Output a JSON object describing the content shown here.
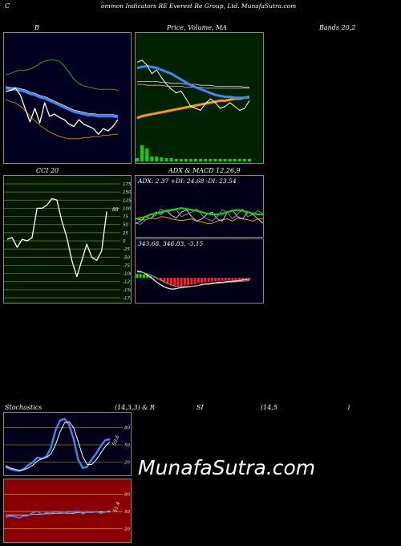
{
  "header": {
    "c": "C",
    "title": "ommon  Indicators RE Everest Re  Group,  Ltd. MunafaSutra.com"
  },
  "labels": {
    "b": "B",
    "price": "Price,  Volume,  MA",
    "bands": "Bands 20,2",
    "cci": "CCI 20",
    "adx": "ADX  & MACD 12,26,9",
    "adx_values": "ADX: 2.37  +DI: 24.68  -DI: 23.54",
    "macd_values": "343.68,  346.83,  -3.15",
    "cci_current": "88",
    "stoch_a": "Stochastics",
    "stoch_b": "(14,3,3) & R",
    "stoch_c": "SI",
    "stoch_d": "(14,5",
    "stoch_e": ")",
    "stoch_current": "59.6",
    "rsi_current": "51.4"
  },
  "watermark": "MunafaSutra.com",
  "colors": {
    "bands_bg": "#000020",
    "price_bg": "#002200",
    "cci_bg": "#001900",
    "adx_bg": "#000018",
    "stoch_bg": "#000018",
    "rsi_bg": "#8b0000"
  },
  "chart_data": [
    {
      "type": "line",
      "name": "bollinger-bands",
      "ylim": [
        0,
        100
      ],
      "series": [
        {
          "name": "upper",
          "values": [
            70,
            71,
            73,
            74,
            74,
            75,
            77,
            80,
            82,
            83,
            83,
            82,
            78,
            72,
            66,
            62,
            60,
            59,
            58,
            57,
            57,
            57,
            57,
            56
          ]
        },
        {
          "name": "middle",
          "values": [
            58,
            57,
            57,
            56,
            55,
            53,
            52,
            50,
            49,
            47,
            45,
            43,
            41,
            39,
            37,
            36,
            35,
            34,
            34,
            33,
            33,
            33,
            33,
            32
          ]
        },
        {
          "name": "lower",
          "values": [
            48,
            46,
            45,
            42,
            38,
            33,
            29,
            25,
            22,
            19,
            17,
            15,
            14,
            13,
            13,
            13,
            14,
            14,
            15,
            15,
            16,
            16,
            17,
            17
          ]
        },
        {
          "name": "price",
          "values": [
            55,
            56,
            58,
            52,
            40,
            28,
            40,
            27,
            45,
            33,
            35,
            32,
            30,
            26,
            24,
            30,
            26,
            24,
            22,
            17,
            22,
            20,
            24,
            30
          ]
        }
      ]
    },
    {
      "type": "line",
      "name": "price-volume-ma",
      "ylim": [
        0,
        100
      ],
      "series": [
        {
          "name": "price",
          "values": [
            78,
            80,
            75,
            66,
            70,
            62,
            55,
            50,
            46,
            48,
            40,
            32,
            30,
            28,
            35,
            40,
            36,
            30,
            32,
            36,
            32,
            28,
            30,
            38
          ]
        },
        {
          "name": "ma-short",
          "values": [
            72,
            73,
            74,
            73,
            72,
            70,
            68,
            66,
            63,
            60,
            57,
            54,
            52,
            50,
            48,
            46,
            44,
            43,
            42,
            42,
            41,
            41,
            41,
            41
          ]
        },
        {
          "name": "ma-mid",
          "values": [
            58,
            58,
            58,
            58,
            58,
            57,
            57,
            56,
            56,
            56,
            55,
            55,
            55,
            54,
            54,
            54,
            53,
            53,
            53,
            53,
            53,
            53,
            52,
            52
          ]
        },
        {
          "name": "ma-long",
          "values": [
            55,
            55,
            54,
            54,
            54,
            54,
            53,
            53,
            53,
            53,
            52,
            52,
            52,
            52,
            51,
            51,
            51,
            51,
            51,
            51,
            51,
            51,
            51,
            51
          ]
        },
        {
          "name": "ma-trend",
          "values": [
            20,
            22,
            23,
            24,
            25,
            26,
            27,
            28,
            29,
            30,
            31,
            32,
            33,
            34,
            35,
            36,
            37,
            38,
            38,
            39,
            40,
            40,
            41,
            42
          ]
        },
        {
          "name": "volume",
          "values": [
            4,
            20,
            16,
            6,
            6,
            5,
            4,
            4,
            3,
            3,
            3,
            3,
            3,
            3,
            3,
            3,
            3,
            3,
            3,
            3,
            3,
            3,
            3,
            3
          ]
        }
      ]
    },
    {
      "type": "line",
      "name": "cci",
      "ylim": [
        -175,
        175
      ],
      "yticks": [
        175,
        150,
        125,
        100,
        75,
        50,
        25,
        0,
        -25,
        -50,
        -75,
        -100,
        -125,
        -150,
        -175
      ],
      "series": [
        {
          "name": "cci",
          "values": [
            5,
            10,
            -20,
            5,
            0,
            10,
            100,
            100,
            110,
            130,
            125,
            60,
            10,
            -60,
            -110,
            -60,
            -10,
            -50,
            -60,
            -30,
            90
          ]
        }
      ]
    },
    {
      "type": "line",
      "name": "adx",
      "ylim": [
        0,
        100
      ],
      "series": [
        {
          "name": "adx",
          "values": [
            40,
            38,
            38,
            42,
            40,
            45,
            44,
            40,
            38,
            36,
            38,
            40,
            35,
            33,
            30,
            30,
            35,
            38,
            40,
            35,
            42,
            40,
            38,
            35,
            40,
            40
          ]
        },
        {
          "name": "plus-di",
          "values": [
            30,
            35,
            45,
            40,
            55,
            50,
            60,
            48,
            42,
            55,
            60,
            45,
            35,
            40,
            50,
            55,
            40,
            35,
            55,
            60,
            45,
            40,
            55,
            50,
            40,
            30
          ]
        },
        {
          "name": "minus-di",
          "values": [
            30,
            28,
            38,
            42,
            48,
            62,
            55,
            58,
            60,
            45,
            50,
            55,
            62,
            48,
            40,
            35,
            45,
            60,
            55,
            40,
            50,
            62,
            45,
            50,
            58,
            52
          ]
        },
        {
          "name": "trend",
          "values": [
            40,
            42,
            45,
            50,
            52,
            55,
            58,
            60,
            62,
            64,
            62,
            60,
            58,
            55,
            52,
            50,
            50,
            52,
            55,
            58,
            60,
            58,
            55,
            52,
            50,
            50
          ]
        }
      ]
    },
    {
      "type": "bar",
      "name": "macd",
      "ylim": [
        -100,
        100
      ],
      "series": [
        {
          "name": "histogram",
          "values": [
            18,
            18,
            16,
            12,
            8,
            2,
            -6,
            -14,
            -22,
            -28,
            -34,
            -38,
            -38,
            -36,
            -34,
            -32,
            -30,
            -28,
            -24,
            -22,
            -20,
            -18,
            -16,
            -15,
            -14,
            -14,
            -13,
            -12,
            -12,
            -11,
            -10,
            -10,
            -9,
            -9
          ]
        },
        {
          "name": "macd",
          "values": [
            30,
            28,
            22,
            12,
            2,
            -10,
            -22,
            -32,
            -40,
            -46,
            -50,
            -50,
            -46,
            -44,
            -42,
            -40,
            -38,
            -36,
            -34,
            -30,
            -28,
            -26,
            -24,
            -22,
            -20,
            -20,
            -18,
            -16,
            -15,
            -14,
            -12,
            -10,
            -8,
            -6
          ]
        },
        {
          "name": "signal",
          "values": [
            26,
            25,
            22,
            18,
            12,
            6,
            -2,
            -10,
            -18,
            -26,
            -32,
            -36,
            -38,
            -39,
            -39,
            -38,
            -37,
            -36,
            -34,
            -32,
            -30,
            -29,
            -27,
            -25,
            -24,
            -22,
            -21,
            -20,
            -19,
            -18,
            -16,
            -15,
            -14,
            -12
          ]
        }
      ]
    },
    {
      "type": "line",
      "name": "stochastics",
      "ylim": [
        0,
        100
      ],
      "yticks": [
        80,
        50,
        20
      ],
      "series": [
        {
          "name": "k",
          "values": [
            12,
            8,
            6,
            5,
            8,
            15,
            20,
            28,
            26,
            30,
            45,
            75,
            92,
            95,
            85,
            60,
            25,
            10,
            12,
            25,
            35,
            48,
            58,
            59.6
          ]
        },
        {
          "name": "d",
          "values": [
            14,
            10,
            8,
            6,
            7,
            10,
            15,
            22,
            26,
            28,
            34,
            50,
            72,
            88,
            90,
            80,
            56,
            30,
            16,
            16,
            24,
            36,
            47,
            55
          ]
        }
      ]
    },
    {
      "type": "line",
      "name": "rsi",
      "ylim": [
        0,
        100
      ],
      "yticks": [
        80,
        50,
        20
      ],
      "series": [
        {
          "name": "rsi",
          "values": [
            40,
            42,
            41,
            39,
            42,
            43,
            48,
            50,
            45,
            48,
            47,
            50,
            49,
            47,
            50,
            49,
            51,
            46,
            49,
            48,
            50,
            47,
            49,
            51.4
          ]
        },
        {
          "name": "avg",
          "values": [
            44,
            44,
            44,
            44,
            44,
            44,
            45,
            45,
            45,
            46,
            46,
            47,
            47,
            47,
            47,
            47,
            48,
            48,
            48,
            48,
            49,
            49,
            49,
            49
          ]
        }
      ]
    }
  ]
}
